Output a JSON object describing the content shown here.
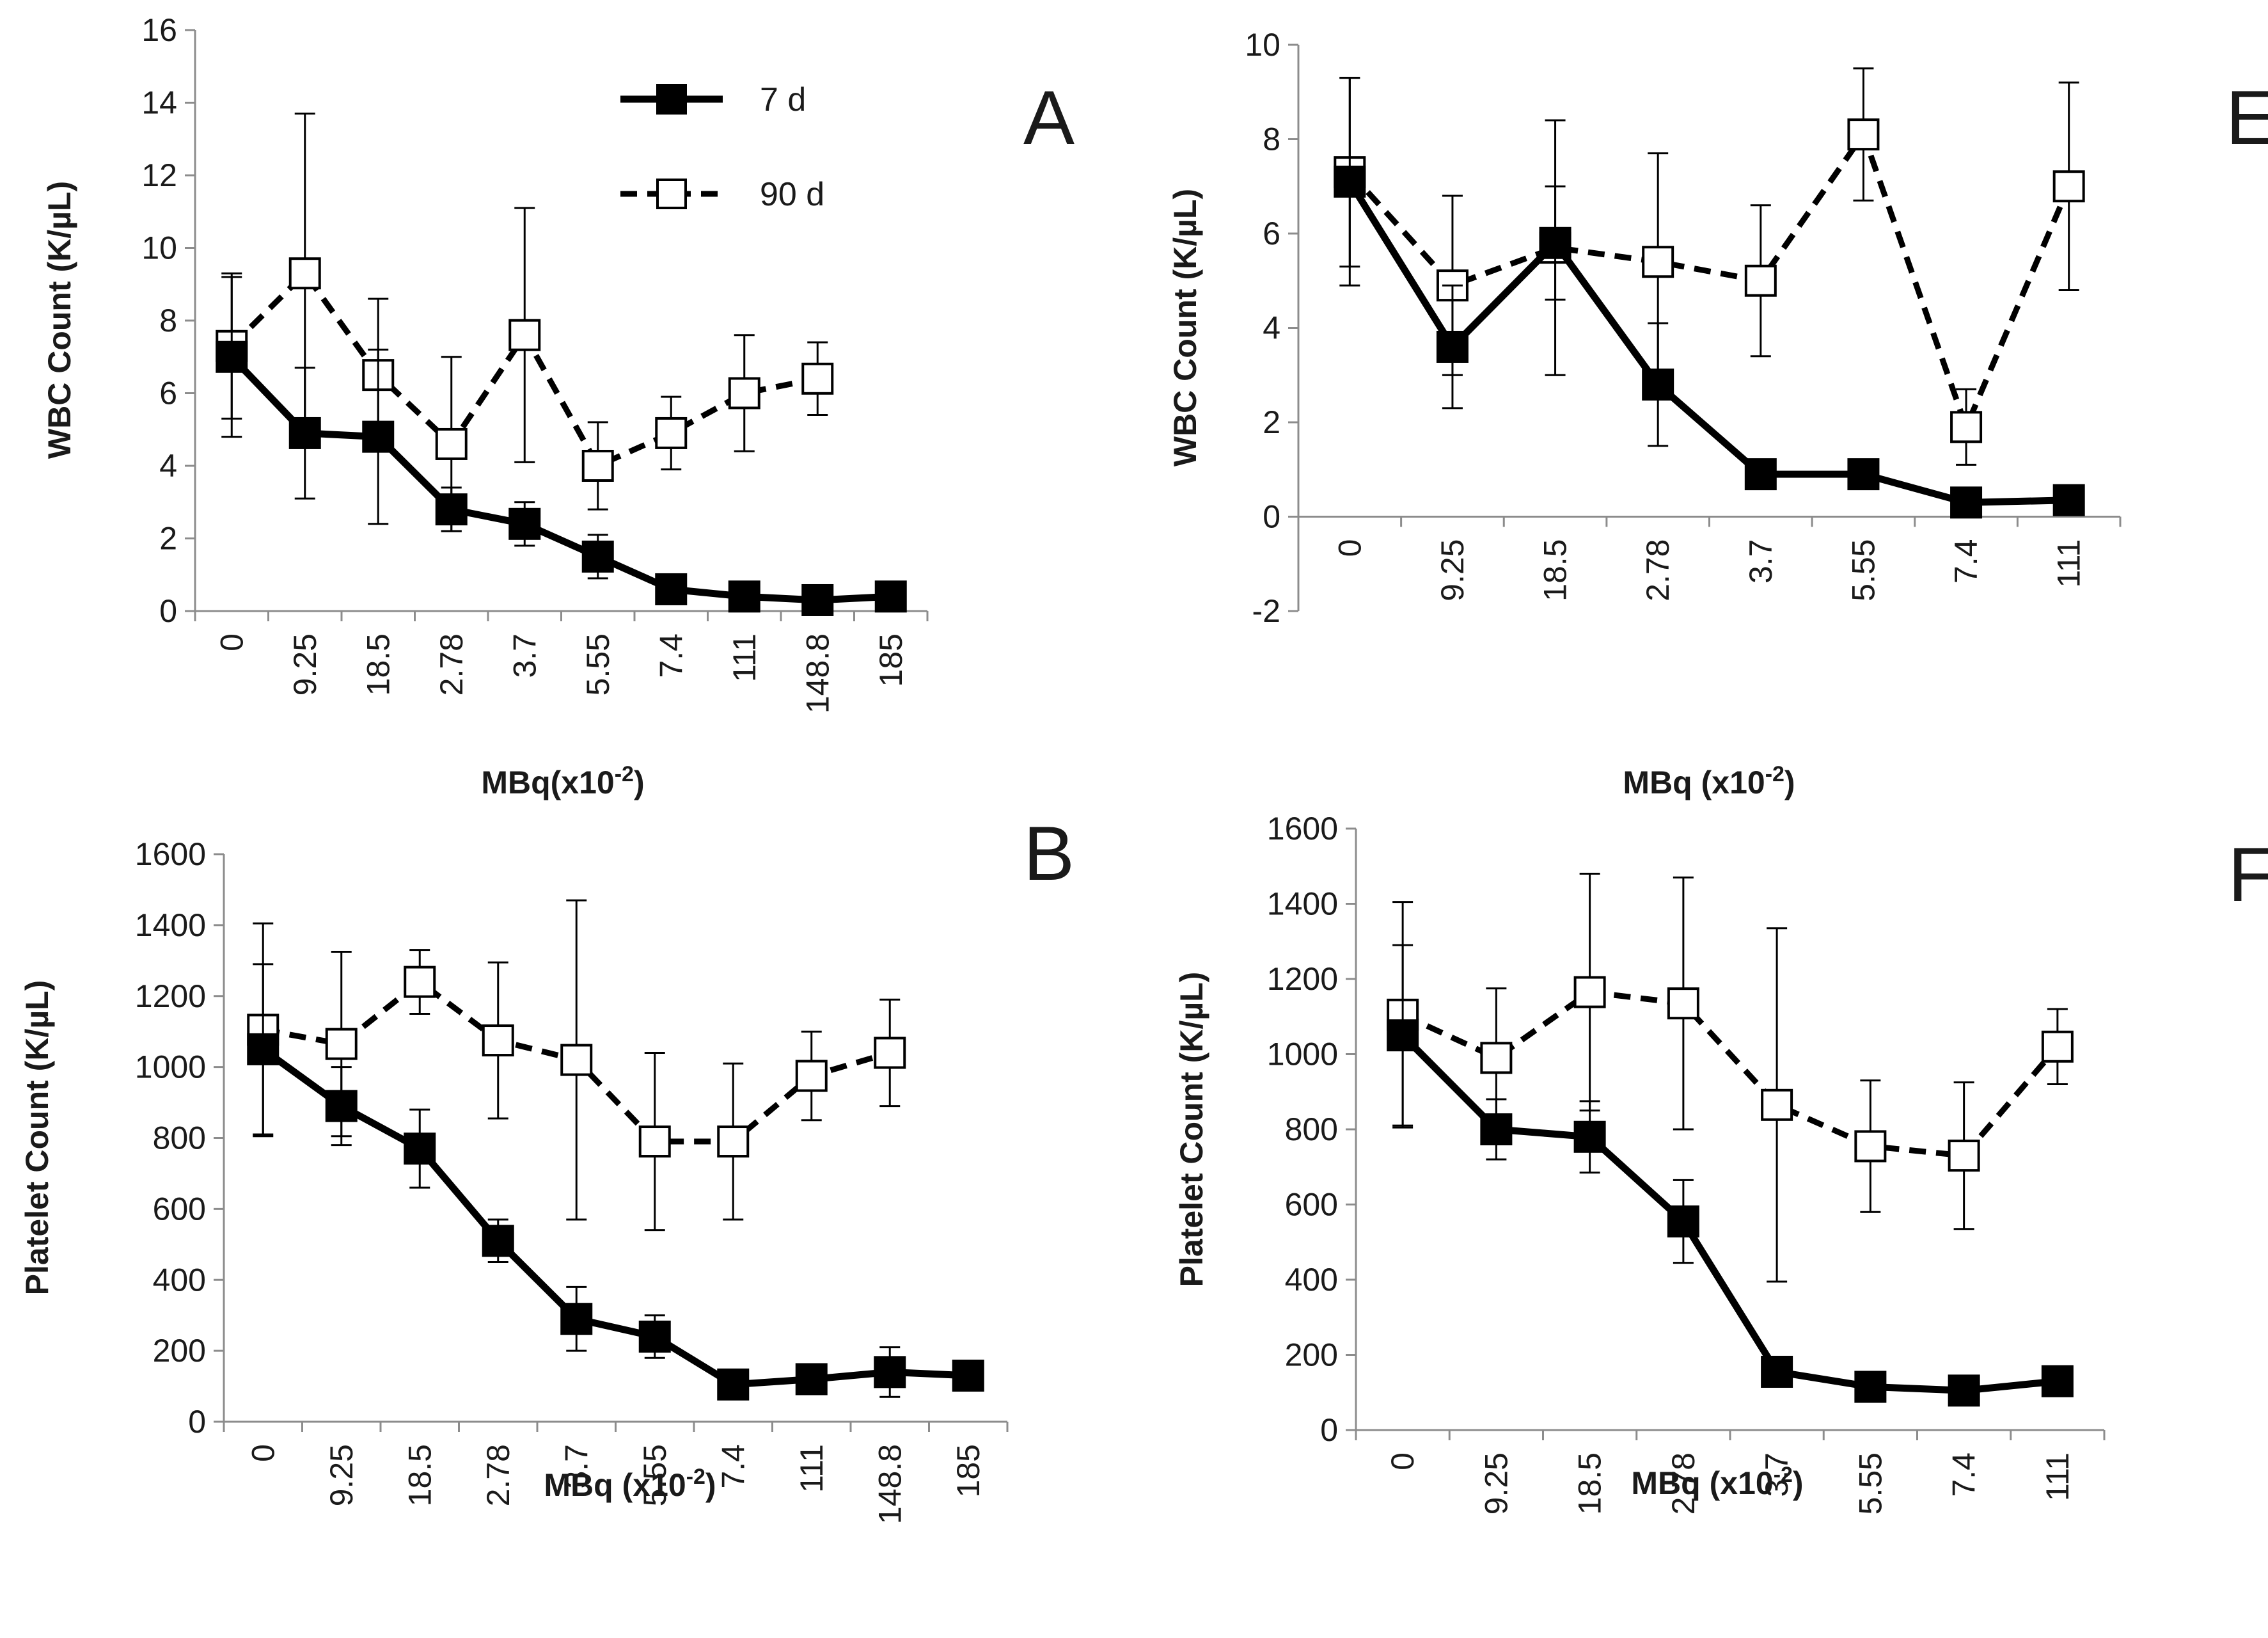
{
  "legend": {
    "entries": [
      {
        "label": "7 d",
        "style": "solid",
        "marker": "filled-square"
      },
      {
        "label": "90 d",
        "style": "dashed",
        "marker": "open-square"
      }
    ]
  },
  "colors": {
    "line": "#000000",
    "axis": "#8c8c8c",
    "text": "#1a1a1a",
    "open_fill": "#ffffff"
  },
  "chart_data": [
    {
      "panel": "A",
      "type": "line",
      "categories": [
        "0",
        "9.25",
        "18.5",
        "2.78",
        "3.7",
        "5.55",
        "7.4",
        "111",
        "148.8",
        "185"
      ],
      "xlabel": "MBq(x10",
      "xlabel_sup": "-2",
      "xlabel_suffix": ")",
      "ylabel": "WBC Count (K/µL)",
      "ylim": [
        0,
        16
      ],
      "yticks": [
        "0",
        "2",
        "4",
        "6",
        "8",
        "10",
        "12",
        "14",
        "16"
      ],
      "series": [
        {
          "name": "7 d",
          "values": [
            7.0,
            4.9,
            4.8,
            2.8,
            2.4,
            1.5,
            0.6,
            0.4,
            0.3,
            0.4
          ],
          "error": [
            2.2,
            1.8,
            2.4,
            0.6,
            0.6,
            0.6,
            0.2,
            0.2,
            0.1,
            0.1
          ]
        },
        {
          "name": "90 d",
          "values": [
            7.3,
            9.3,
            6.5,
            4.6,
            7.6,
            4.0,
            4.9,
            6.0,
            6.4,
            null
          ],
          "error": [
            2.0,
            4.4,
            2.1,
            2.4,
            3.5,
            1.2,
            1.0,
            1.6,
            1.0,
            null
          ]
        }
      ]
    },
    {
      "panel": "E",
      "type": "line",
      "categories": [
        "0",
        "9.25",
        "18.5",
        "2.78",
        "3.7",
        "5.55",
        "7.4",
        "111"
      ],
      "xlabel": "MBq (x10",
      "xlabel_sup": "-2",
      "xlabel_suffix": ")",
      "ylabel": "WBC Count (K/µL)",
      "ylim": [
        -2,
        10
      ],
      "yticks": [
        "-2",
        "0",
        "2",
        "4",
        "6",
        "8",
        "10"
      ],
      "series": [
        {
          "name": "7 d",
          "values": [
            7.1,
            3.6,
            5.8,
            2.8,
            0.9,
            0.9,
            0.3,
            0.35
          ],
          "error": [
            2.2,
            1.3,
            1.2,
            1.3,
            0.1,
            0.1,
            0.1,
            0.1
          ]
        },
        {
          "name": "90 d",
          "values": [
            7.3,
            4.9,
            5.7,
            5.4,
            5.0,
            8.1,
            1.9,
            7.0
          ],
          "error": [
            2.0,
            1.9,
            2.7,
            2.3,
            1.6,
            1.4,
            0.8,
            2.2
          ]
        }
      ]
    },
    {
      "panel": "B",
      "type": "line",
      "categories": [
        "0",
        "9.25",
        "18.5",
        "2.78",
        "3.7",
        "5.55",
        "7.4",
        "111",
        "148.8",
        "185"
      ],
      "xlabel": "MBq (x10",
      "xlabel_sup": "-2",
      "xlabel_suffix": ")",
      "ylabel": "Platelet Count (K/µL)",
      "ylim": [
        0,
        1600
      ],
      "yticks": [
        "0",
        "200",
        "400",
        "600",
        "800",
        "1000",
        "1200",
        "1400",
        "1600"
      ],
      "series": [
        {
          "name": "7 d",
          "values": [
            1050,
            890,
            770,
            510,
            290,
            240,
            105,
            120,
            140,
            130
          ],
          "error": [
            240,
            110,
            110,
            60,
            90,
            60,
            20,
            20,
            70,
            20
          ]
        },
        {
          "name": "90 d",
          "values": [
            1105,
            1065,
            1240,
            1075,
            1020,
            790,
            790,
            975,
            1040,
            null
          ],
          "error": [
            300,
            260,
            90,
            220,
            450,
            250,
            220,
            125,
            150,
            null
          ]
        }
      ]
    },
    {
      "panel": "F",
      "type": "line",
      "categories": [
        "0",
        "9.25",
        "18.5",
        "2.78",
        "3.7",
        "5.55",
        "7.4",
        "111"
      ],
      "xlabel": "MBq (x10",
      "xlabel_sup": "-2",
      "xlabel_suffix": ")",
      "ylabel": "Platelet Count (K/µL)",
      "ylim": [
        0,
        1600
      ],
      "yticks": [
        "0",
        "200",
        "400",
        "600",
        "800",
        "1000",
        "1200",
        "1400",
        "1600"
      ],
      "series": [
        {
          "name": "7 d",
          "values": [
            1050,
            800,
            780,
            555,
            155,
            115,
            105,
            130
          ],
          "error": [
            240,
            80,
            95,
            110,
            20,
            15,
            15,
            15
          ]
        },
        {
          "name": "90 d",
          "values": [
            1105,
            990,
            1165,
            1135,
            865,
            755,
            730,
            1020
          ],
          "error": [
            300,
            185,
            315,
            335,
            470,
            175,
            195,
            100
          ]
        }
      ]
    }
  ]
}
